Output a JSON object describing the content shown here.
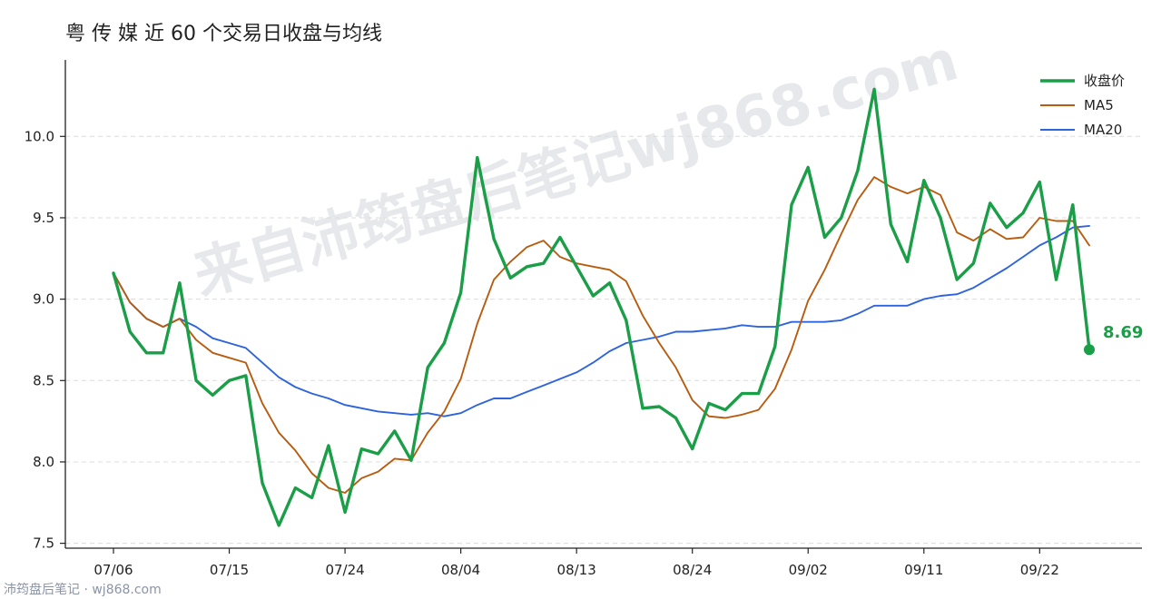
{
  "title": "粤 传 媒 近 60 个交易日收盘与均线",
  "watermark": "来自沛筠盘后笔记wj868.com",
  "footer": "沛筠盘后笔记 · wj868.com",
  "colors": {
    "close": "#1a9e47",
    "ma5": "#b85c10",
    "ma20": "#2d63dd"
  },
  "chart_data": {
    "type": "line",
    "title": "粤 传 媒 近 60 个交易日收盘与均线",
    "xlabel": "",
    "ylabel": "",
    "ylim": [
      7.47,
      10.47
    ],
    "y_ticks": [
      7.5,
      8.0,
      8.5,
      9.0,
      9.5,
      10.0
    ],
    "y_tick_labels": [
      "7.5",
      "8.0",
      "8.5",
      "9.0",
      "9.5",
      "10.0"
    ],
    "x_tick_labels": [
      "07/06",
      "07/15",
      "07/24",
      "08/04",
      "08/13",
      "08/24",
      "09/02",
      "09/11",
      "09/22"
    ],
    "x_tick_index": [
      0,
      7,
      14,
      21,
      28,
      35,
      42,
      49,
      56
    ],
    "grid": "horizontal dashed",
    "legend_position": "top-right",
    "last_label": "8.69",
    "series": [
      {
        "name": "收盘价",
        "values": [
          9.16,
          8.8,
          8.67,
          8.67,
          9.1,
          8.5,
          8.41,
          8.5,
          8.53,
          7.87,
          7.61,
          7.84,
          7.78,
          8.1,
          7.69,
          8.08,
          8.05,
          8.19,
          8.01,
          8.58,
          8.73,
          9.04,
          9.87,
          9.37,
          9.13,
          9.2,
          9.22,
          9.38,
          9.2,
          9.02,
          9.1,
          8.87,
          8.33,
          8.34,
          8.27,
          8.08,
          8.36,
          8.32,
          8.42,
          8.42,
          8.71,
          9.58,
          9.81,
          9.38,
          9.5,
          9.79,
          10.29,
          9.46,
          9.23,
          9.73,
          9.5,
          9.12,
          9.22,
          9.59,
          9.44,
          9.53,
          9.72,
          9.12,
          9.58,
          8.69
        ]
      },
      {
        "name": "MA5",
        "values": [
          9.16,
          8.98,
          8.88,
          8.83,
          8.88,
          8.75,
          8.67,
          8.64,
          8.61,
          8.36,
          8.18,
          8.07,
          7.93,
          7.84,
          7.81,
          7.9,
          7.94,
          8.02,
          8.01,
          8.18,
          8.31,
          8.51,
          8.85,
          9.12,
          9.23,
          9.32,
          9.36,
          9.26,
          9.22,
          9.2,
          9.18,
          9.11,
          8.9,
          8.73,
          8.58,
          8.38,
          8.28,
          8.27,
          8.29,
          8.32,
          8.45,
          8.69,
          8.99,
          9.18,
          9.4,
          9.61,
          9.75,
          9.69,
          9.65,
          9.69,
          9.64,
          9.41,
          9.36,
          9.43,
          9.37,
          9.38,
          9.5,
          9.48,
          9.48,
          9.33
        ]
      },
      {
        "name": "MA20",
        "values": [
          9.16,
          8.98,
          8.88,
          8.83,
          8.88,
          8.83,
          8.76,
          8.73,
          8.7,
          8.61,
          8.52,
          8.46,
          8.42,
          8.39,
          8.35,
          8.33,
          8.31,
          8.3,
          8.29,
          8.3,
          8.28,
          8.3,
          8.35,
          8.39,
          8.39,
          8.43,
          8.47,
          8.51,
          8.55,
          8.61,
          8.68,
          8.73,
          8.75,
          8.77,
          8.8,
          8.8,
          8.81,
          8.82,
          8.84,
          8.83,
          8.83,
          8.86,
          8.86,
          8.86,
          8.87,
          8.91,
          8.96,
          8.96,
          8.96,
          9.0,
          9.02,
          9.03,
          9.07,
          9.13,
          9.19,
          9.26,
          9.33,
          9.38,
          9.44,
          9.45
        ]
      }
    ]
  }
}
